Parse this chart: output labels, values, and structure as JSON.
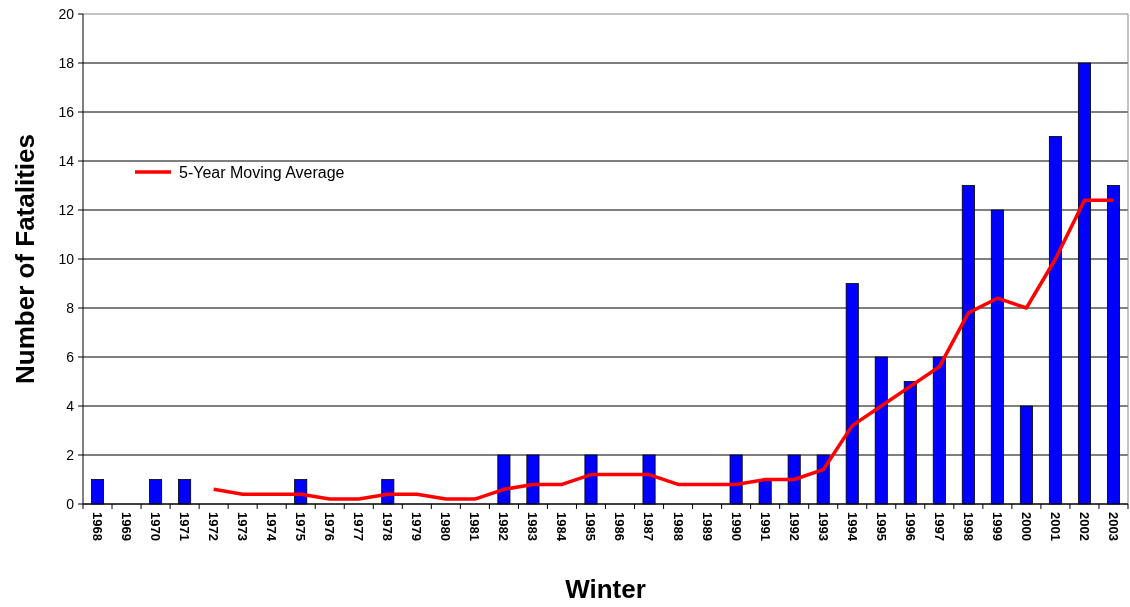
{
  "chart_data": {
    "type": "bar",
    "xlabel": "Winter",
    "ylabel": "Number of Fatalities",
    "categories": [
      "1968",
      "1969",
      "1970",
      "1971",
      "1972",
      "1973",
      "1974",
      "1975",
      "1976",
      "1977",
      "1978",
      "1979",
      "1980",
      "1981",
      "1982",
      "1983",
      "1984",
      "1985",
      "1986",
      "1987",
      "1988",
      "1989",
      "1990",
      "1991",
      "1992",
      "1993",
      "1994",
      "1995",
      "1996",
      "1997",
      "1998",
      "1999",
      "2000",
      "2001",
      "2002",
      "2003"
    ],
    "series": [
      {
        "color": "#0000ff",
        "values": [
          1,
          0,
          1,
          1,
          0,
          0,
          0,
          1,
          0,
          0,
          1,
          0,
          0,
          0,
          2,
          2,
          0,
          2,
          0,
          2,
          0,
          0,
          2,
          1,
          2,
          2,
          9,
          6,
          5,
          6,
          13,
          12,
          4,
          15,
          18,
          13
        ]
      },
      {
        "type": "line",
        "name": "5-Year Moving Average",
        "color": "#ff0000",
        "values": [
          null,
          null,
          null,
          null,
          0.6,
          0.4,
          0.4,
          0.4,
          0.2,
          0.2,
          0.4,
          0.4,
          0.2,
          0.2,
          0.6,
          0.8,
          0.8,
          1.2,
          1.2,
          1.2,
          0.8,
          0.8,
          0.8,
          1.0,
          1.0,
          1.4,
          3.2,
          4.0,
          4.8,
          5.6,
          7.8,
          8.4,
          8.0,
          10,
          12.4,
          12.4
        ]
      }
    ],
    "ylim": [
      0,
      20
    ],
    "yticks": [
      0,
      2,
      4,
      6,
      8,
      10,
      12,
      14,
      16,
      18,
      20
    ],
    "grid": "y",
    "legend": "top left",
    "marker": "none"
  }
}
